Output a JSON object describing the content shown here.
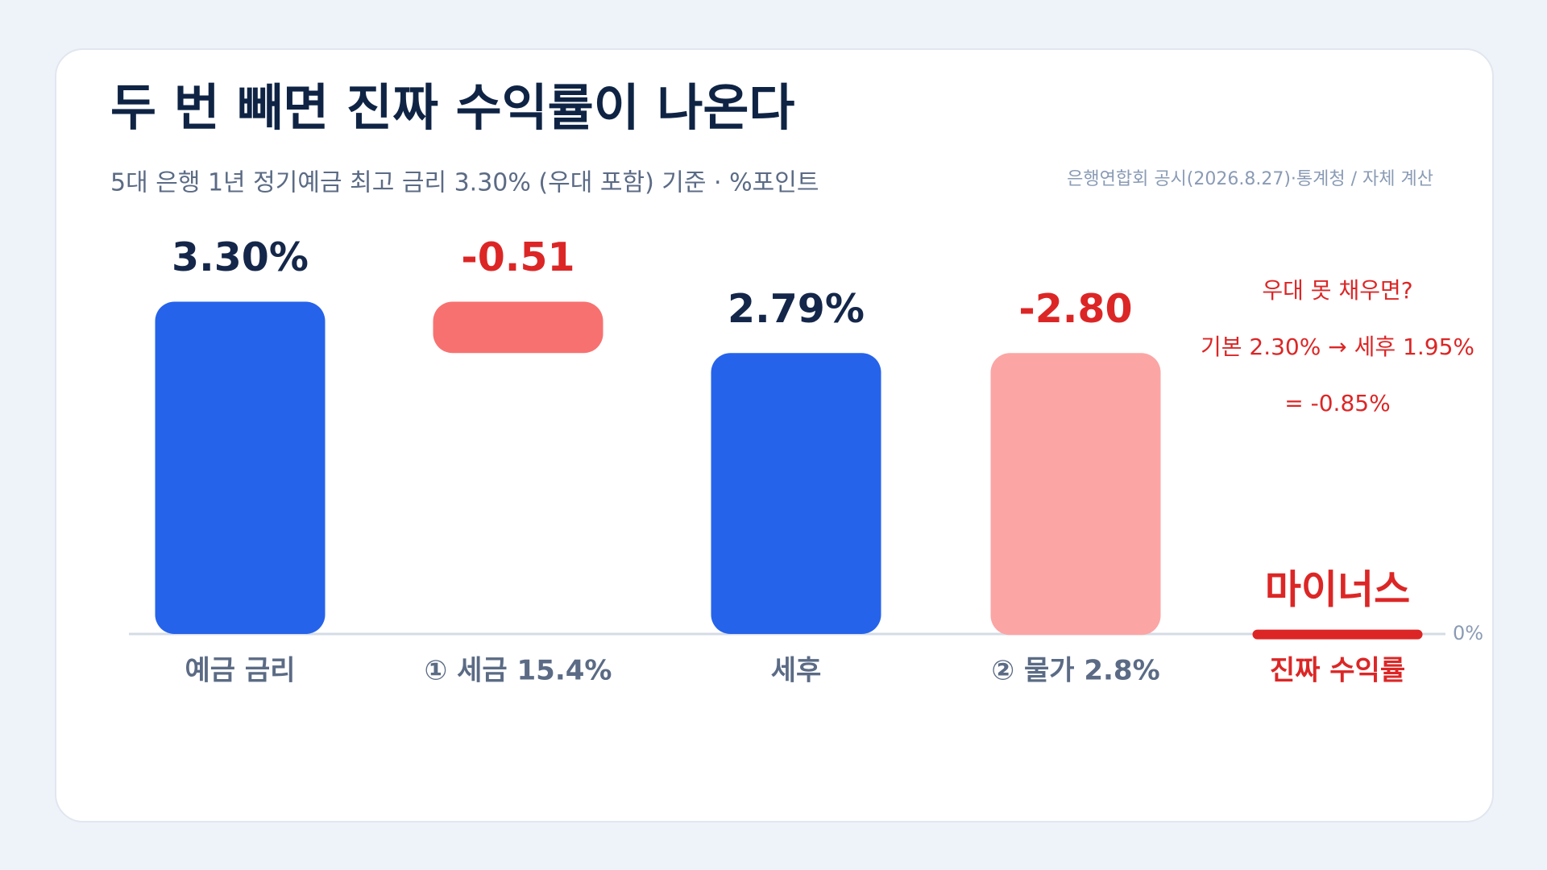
{
  "chart_data": {
    "type": "waterfall",
    "title": "두 번 빼면 진짜 수익률이 나온다",
    "subtitle": "5대 은행 1년 정기예금 최고 금리 3.30% (우대 포함) 기준 · %포인트",
    "source": "은행연합회 공시(2026.8.27)·통계청 / 자체 계산",
    "categories": [
      "예금 금리",
      "① 세금 15.4%",
      "세후",
      "② 물가 2.8%",
      "진짜 수익률"
    ],
    "measures": [
      "absolute",
      "relative",
      "absolute",
      "relative",
      "total"
    ],
    "values": [
      3.3,
      -0.51,
      2.79,
      -2.8,
      -0.01
    ],
    "value_labels": [
      "3.30%",
      "-0.51",
      "2.79%",
      "-2.80",
      "마이너스"
    ],
    "colors": [
      "#2563EB",
      "#F87171",
      "#2563EB",
      "#FCA5A5",
      "#DC2626"
    ],
    "ylim": [
      -0.1,
      4.0
    ],
    "yticks": [
      {
        "value": 0,
        "label": "0%"
      }
    ],
    "annotations": [
      "우대 못 채우면?",
      "기본 2.30% → 세후 1.95%",
      "= -0.85%"
    ]
  }
}
